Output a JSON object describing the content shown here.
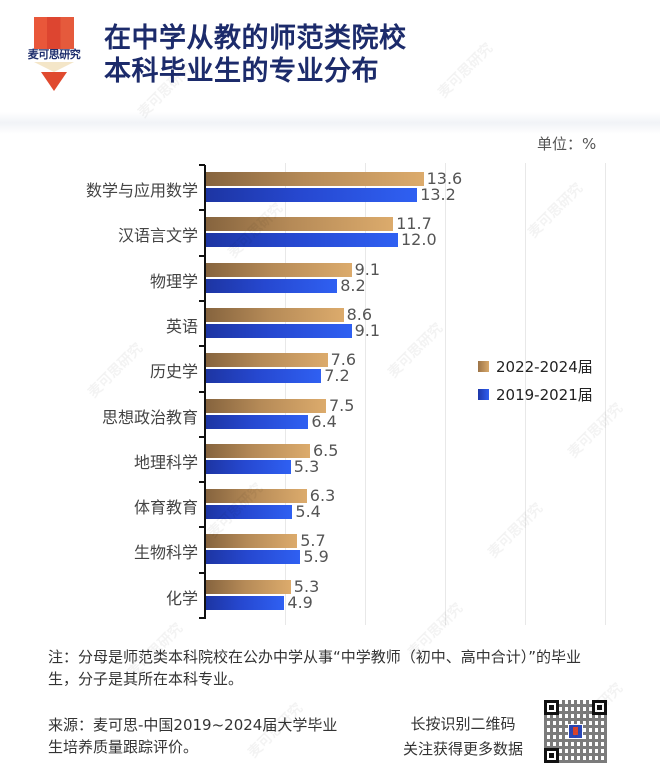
{
  "header": {
    "logo_text": "麦可思研究",
    "title_line1": "在中学从教的师范类院校",
    "title_line2": "本科毕业生的专业分布"
  },
  "unit_label": "单位：%",
  "legend": [
    {
      "label": "2022-2024届",
      "color": "#c89a5e"
    },
    {
      "label": "2019-2021届",
      "color": "#2a50dc"
    }
  ],
  "chart_data": {
    "type": "bar",
    "orientation": "horizontal",
    "title": "在中学从教的师范类院校本科毕业生的专业分布",
    "unit": "%",
    "categories": [
      "数学与应用数学",
      "汉语言文学",
      "物理学",
      "英语",
      "历史学",
      "思想政治教育",
      "地理科学",
      "体育教育",
      "生物科学",
      "化学"
    ],
    "series": [
      {
        "name": "2022-2024届",
        "color": "#c89a5e",
        "values": [
          13.6,
          11.7,
          9.1,
          8.6,
          7.6,
          7.5,
          6.5,
          6.3,
          5.7,
          5.3
        ]
      },
      {
        "name": "2019-2021届",
        "color": "#2a50dc",
        "values": [
          13.2,
          12.0,
          8.2,
          9.1,
          7.2,
          6.4,
          5.3,
          5.4,
          5.9,
          4.9
        ]
      }
    ],
    "value_labels": {
      "2022-2024届": [
        "13.6",
        "11.7",
        "9.1",
        "8.6",
        "7.6",
        "7.5",
        "6.5",
        "6.3",
        "5.7",
        "5.3"
      ],
      "2019-2021届": [
        "13.2",
        "12.0",
        "8.2",
        "9.1",
        "7.2",
        "6.4",
        "5.3",
        "5.4",
        "5.9",
        "4.9"
      ]
    },
    "xlim": [
      0,
      25
    ],
    "grid": true,
    "grid_step": 5,
    "legend_position": "right"
  },
  "footer": {
    "note": "注：分母是师范类本科院校在公办中学从事“中学教师（初中、高中合计）”的毕业生，分子是其所在本科专业。",
    "source": "来源：麦可思-中国2019~2024届大学毕业生培养质量跟踪评价。",
    "qr_line1": "长按识别二维码",
    "qr_line2": "关注获得更多数据"
  },
  "watermark_text": "麦可思研究"
}
